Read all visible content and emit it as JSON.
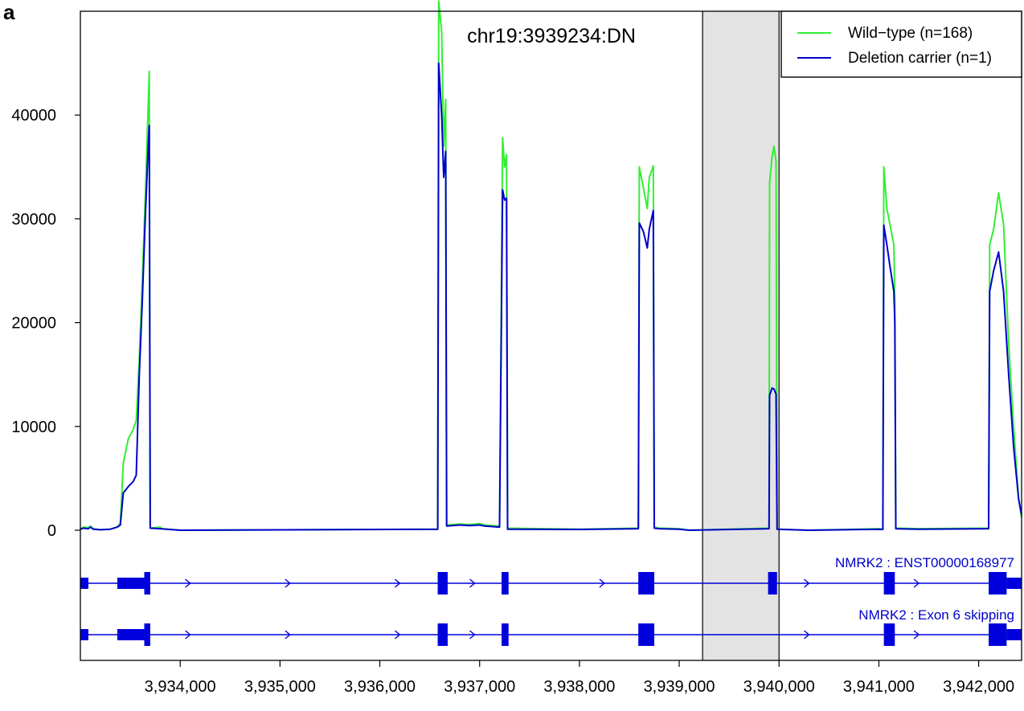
{
  "panel_letter": "a",
  "colors": {
    "wild_type": "#33ee33",
    "deletion_carrier": "#0000cc",
    "highlight_fill": "#e3e3e3",
    "transcript": "#0000dd"
  },
  "chart_data": {
    "type": "line",
    "title": "chr19:3939234:DN",
    "xlabel": "",
    "ylabel": "",
    "xlim": [
      3933000,
      3942430
    ],
    "ylim": [
      0,
      50000
    ],
    "x_ticks": [
      3934000,
      3935000,
      3936000,
      3937000,
      3938000,
      3939000,
      3940000,
      3941000,
      3942000
    ],
    "x_tick_labels": [
      "3,934,000",
      "3,935,000",
      "3,936,000",
      "3,937,000",
      "3,938,000",
      "3,939,000",
      "3,940,000",
      "3,941,000",
      "3,942,000"
    ],
    "y_ticks": [
      0,
      10000,
      20000,
      30000,
      40000
    ],
    "y_tick_labels": [
      "0",
      "10000",
      "20000",
      "30000",
      "40000"
    ],
    "grid": false,
    "legend_position": "top-right",
    "highlight_region": [
      3939234,
      3940000
    ],
    "series": [
      {
        "name": "Wild−type (n=168)",
        "points": [
          [
            3933000,
            100
          ],
          [
            3933030,
            300
          ],
          [
            3933080,
            250
          ],
          [
            3933100,
            400
          ],
          [
            3933130,
            150
          ],
          [
            3933200,
            50
          ],
          [
            3933300,
            100
          ],
          [
            3933370,
            300
          ],
          [
            3933400,
            700
          ],
          [
            3933430,
            6500
          ],
          [
            3933480,
            8800
          ],
          [
            3933530,
            9700
          ],
          [
            3933560,
            10600
          ],
          [
            3933590,
            16500
          ],
          [
            3933620,
            24000
          ],
          [
            3933650,
            32000
          ],
          [
            3933680,
            41000
          ],
          [
            3933690,
            44200
          ],
          [
            3933700,
            200
          ],
          [
            3933800,
            300
          ],
          [
            3933820,
            150
          ],
          [
            3934000,
            0
          ],
          [
            3936580,
            100
          ],
          [
            3936590,
            51000
          ],
          [
            3936620,
            48000
          ],
          [
            3936640,
            37000
          ],
          [
            3936660,
            41500
          ],
          [
            3936670,
            500
          ],
          [
            3936800,
            600
          ],
          [
            3936900,
            550
          ],
          [
            3937000,
            650
          ],
          [
            3937050,
            500
          ],
          [
            3937200,
            400
          ],
          [
            3937230,
            37800
          ],
          [
            3937250,
            35000
          ],
          [
            3937270,
            36200
          ],
          [
            3937280,
            200
          ],
          [
            3938000,
            100
          ],
          [
            3938590,
            200
          ],
          [
            3938600,
            35000
          ],
          [
            3938640,
            33000
          ],
          [
            3938680,
            31000
          ],
          [
            3938700,
            34000
          ],
          [
            3938740,
            35100
          ],
          [
            3938750,
            300
          ],
          [
            3938800,
            200
          ],
          [
            3939000,
            150
          ],
          [
            3939100,
            0
          ],
          [
            3939900,
            200
          ],
          [
            3939905,
            33500
          ],
          [
            3939930,
            36000
          ],
          [
            3939950,
            37000
          ],
          [
            3939970,
            35500
          ],
          [
            3939980,
            100
          ],
          [
            3940300,
            0
          ],
          [
            3941000,
            150
          ],
          [
            3941040,
            100
          ],
          [
            3941050,
            35000
          ],
          [
            3941080,
            31000
          ],
          [
            3941110,
            29500
          ],
          [
            3941150,
            27500
          ],
          [
            3941160,
            22000
          ],
          [
            3941170,
            200
          ],
          [
            3941400,
            150
          ],
          [
            3942100,
            200
          ],
          [
            3942110,
            27500
          ],
          [
            3942150,
            29000
          ],
          [
            3942200,
            32500
          ],
          [
            3942250,
            29500
          ],
          [
            3942300,
            18000
          ],
          [
            3942350,
            10000
          ],
          [
            3942400,
            3000
          ],
          [
            3942430,
            1200
          ]
        ]
      },
      {
        "name": "Deletion carrier (n=1)",
        "points": [
          [
            3933000,
            100
          ],
          [
            3933030,
            200
          ],
          [
            3933080,
            150
          ],
          [
            3933100,
            300
          ],
          [
            3933130,
            100
          ],
          [
            3933200,
            50
          ],
          [
            3933300,
            100
          ],
          [
            3933370,
            300
          ],
          [
            3933400,
            500
          ],
          [
            3933430,
            3600
          ],
          [
            3933480,
            4200
          ],
          [
            3933530,
            4700
          ],
          [
            3933560,
            5300
          ],
          [
            3933590,
            15000
          ],
          [
            3933620,
            22000
          ],
          [
            3933650,
            30000
          ],
          [
            3933680,
            37000
          ],
          [
            3933690,
            39000
          ],
          [
            3933700,
            200
          ],
          [
            3933800,
            150
          ],
          [
            3934000,
            0
          ],
          [
            3936580,
            100
          ],
          [
            3936590,
            45000
          ],
          [
            3936620,
            40000
          ],
          [
            3936640,
            34000
          ],
          [
            3936660,
            36500
          ],
          [
            3936670,
            400
          ],
          [
            3936800,
            500
          ],
          [
            3936900,
            450
          ],
          [
            3937000,
            500
          ],
          [
            3937050,
            400
          ],
          [
            3937200,
            300
          ],
          [
            3937230,
            32800
          ],
          [
            3937250,
            31800
          ],
          [
            3937270,
            32000
          ],
          [
            3937280,
            100
          ],
          [
            3938000,
            80
          ],
          [
            3938590,
            150
          ],
          [
            3938600,
            29600
          ],
          [
            3938640,
            28800
          ],
          [
            3938680,
            27200
          ],
          [
            3938700,
            29000
          ],
          [
            3938740,
            30800
          ],
          [
            3938750,
            200
          ],
          [
            3938800,
            150
          ],
          [
            3939000,
            100
          ],
          [
            3939100,
            0
          ],
          [
            3939900,
            150
          ],
          [
            3939905,
            13000
          ],
          [
            3939930,
            13700
          ],
          [
            3939950,
            13600
          ],
          [
            3939970,
            13100
          ],
          [
            3939980,
            100
          ],
          [
            3940300,
            0
          ],
          [
            3941000,
            100
          ],
          [
            3941040,
            80
          ],
          [
            3941050,
            29400
          ],
          [
            3941080,
            27500
          ],
          [
            3941110,
            25500
          ],
          [
            3941150,
            23000
          ],
          [
            3941160,
            20000
          ],
          [
            3941170,
            150
          ],
          [
            3941400,
            100
          ],
          [
            3942100,
            150
          ],
          [
            3942110,
            23000
          ],
          [
            3942150,
            25000
          ],
          [
            3942200,
            26800
          ],
          [
            3942250,
            23000
          ],
          [
            3942300,
            15000
          ],
          [
            3942350,
            8000
          ],
          [
            3942400,
            3000
          ],
          [
            3942430,
            1500
          ]
        ]
      }
    ],
    "transcripts": [
      {
        "label": "NMRK2 : ENST00000168977",
        "exons": [
          [
            3933000,
            3933080,
            "utr"
          ],
          [
            3933370,
            3933640,
            "utr"
          ],
          [
            3933640,
            3933700,
            "cds"
          ],
          [
            3936580,
            3936680,
            "cds"
          ],
          [
            3937220,
            3937290,
            "cds"
          ],
          [
            3938590,
            3938750,
            "cds"
          ],
          [
            3939890,
            3939980,
            "cds"
          ],
          [
            3941050,
            3941160,
            "cds"
          ],
          [
            3942100,
            3942280,
            "cds"
          ],
          [
            3942280,
            3942430,
            "utr"
          ]
        ],
        "arrows": [
          3934100,
          3935100,
          3936200,
          3936950,
          3938250,
          3940300,
          3941400
        ]
      },
      {
        "label": "NMRK2 : Exon 6 skipping",
        "exons": [
          [
            3933000,
            3933080,
            "utr"
          ],
          [
            3933370,
            3933640,
            "utr"
          ],
          [
            3933640,
            3933700,
            "cds"
          ],
          [
            3936580,
            3936680,
            "cds"
          ],
          [
            3937220,
            3937290,
            "cds"
          ],
          [
            3938590,
            3938750,
            "cds"
          ],
          [
            3941050,
            3941160,
            "cds"
          ],
          [
            3942100,
            3942280,
            "cds"
          ],
          [
            3942280,
            3942430,
            "utr"
          ]
        ],
        "arrows": [
          3934100,
          3935100,
          3936200,
          3936950,
          3940300,
          3941400
        ]
      }
    ]
  }
}
